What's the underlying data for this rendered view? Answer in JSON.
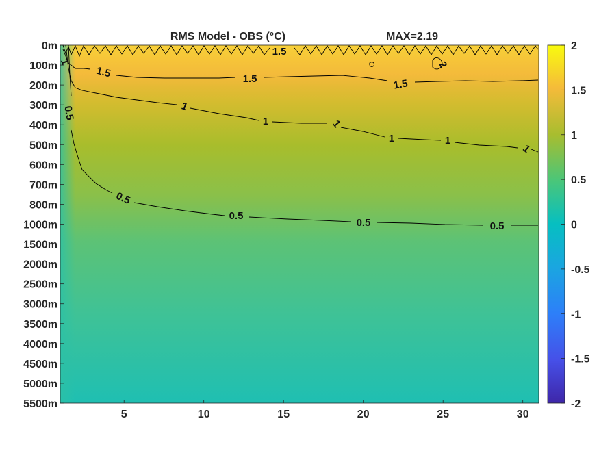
{
  "chart_data": {
    "type": "heatmap",
    "title": "RMS Model - OBS (°C)",
    "max_label": "MAX=2.19",
    "xlabel": "",
    "ylabel": "",
    "x_ticks": [
      5,
      10,
      15,
      20,
      25,
      30
    ],
    "xlim": [
      1,
      31
    ],
    "y_tick_labels": [
      "0m",
      "100m",
      "200m",
      "300m",
      "400m",
      "500m",
      "600m",
      "700m",
      "800m",
      "1000m",
      "1500m",
      "2000m",
      "2500m",
      "3000m",
      "3500m",
      "4000m",
      "4500m",
      "5000m",
      "5500m"
    ],
    "colorbar": {
      "range": [
        -2,
        2
      ],
      "ticks": [
        "2",
        "1.5",
        "1",
        "0.5",
        "0",
        "-0.5",
        "-1",
        "-1.5",
        "-2"
      ],
      "colormap": "parula"
    },
    "contours": [
      {
        "level": "1.5",
        "labels": 5
      },
      {
        "level": "1",
        "labels": 6
      },
      {
        "level": "0.5",
        "labels": 5
      },
      {
        "level": "2",
        "labels": 1
      }
    ],
    "grid": false,
    "max": 2.19
  }
}
